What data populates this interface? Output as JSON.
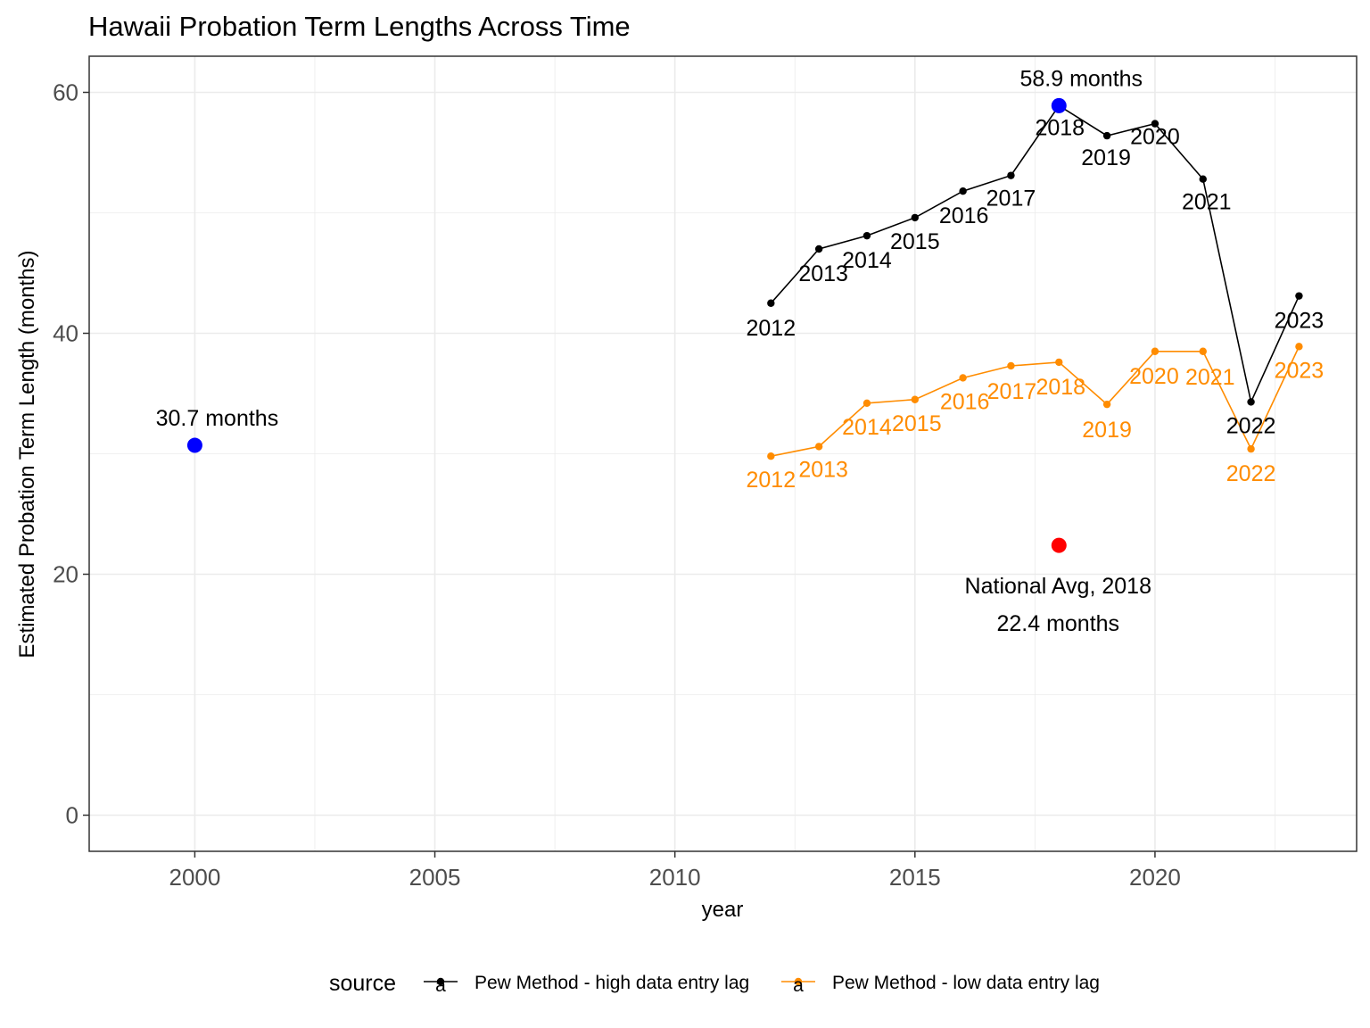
{
  "chart_data": {
    "type": "line",
    "title": "Hawaii Probation Term Lengths Across Time",
    "xlabel": "year",
    "ylabel": "Estimated Probation Term Length (months)",
    "xlim": [
      1997.8,
      2024.2
    ],
    "ylim": [
      -3,
      63
    ],
    "xticks": [
      2000,
      2005,
      2010,
      2015,
      2020
    ],
    "yticks": [
      0,
      20,
      40,
      60
    ],
    "grid": true,
    "legend": {
      "title": "source",
      "placement": "bottom",
      "glyph": "a"
    },
    "series": [
      {
        "name": "Pew Method - high data entry lag",
        "color": "#000000",
        "x": [
          2012,
          2013,
          2014,
          2015,
          2016,
          2017,
          2018,
          2019,
          2020,
          2021,
          2022,
          2023
        ],
        "y": [
          42.5,
          47.0,
          48.1,
          49.6,
          51.8,
          53.1,
          58.9,
          56.4,
          57.4,
          52.8,
          34.3,
          43.1
        ],
        "labels": [
          "2012",
          "2013",
          "2014",
          "2015",
          "2016",
          "2017",
          "2018",
          "2019",
          "2020",
          "2021",
          "2022",
          "2023"
        ]
      },
      {
        "name": "Pew Method - low data entry lag",
        "color": "#ff8c00",
        "x": [
          2012,
          2013,
          2014,
          2015,
          2016,
          2017,
          2018,
          2019,
          2020,
          2021,
          2022,
          2023
        ],
        "y": [
          29.8,
          30.6,
          34.2,
          34.5,
          36.3,
          37.3,
          37.6,
          34.1,
          38.5,
          38.5,
          30.4,
          38.9
        ],
        "labels": [
          "2012",
          "2013",
          "2014",
          "2015",
          "2016",
          "2017",
          "2018",
          "2019",
          "2020",
          "2021",
          "2022",
          "2023"
        ]
      }
    ],
    "highlights": [
      {
        "x": 2000,
        "y": 30.7,
        "color": "#0000ff",
        "label": "30.7 months"
      },
      {
        "x": 2018,
        "y": 58.9,
        "color": "#0000ff",
        "label": "58.9 months"
      },
      {
        "x": 2018,
        "y": 22.4,
        "color": "#ff0000",
        "label_line1": "National Avg, 2018",
        "label_line2": "22.4 months"
      }
    ]
  }
}
